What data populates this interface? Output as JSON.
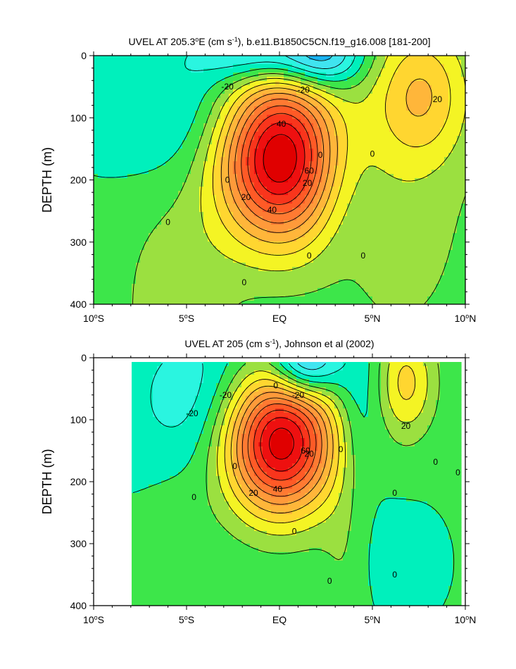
{
  "chart_data": [
    {
      "type": "contour",
      "title": "UVEL AT 205.3°E (cm s-1), b.e11.B1850C5CN.f19_g16.008 [181-200]",
      "title_parts": {
        "a": "UVEL AT 205.3",
        "deg": "o",
        "b": "E (cm s",
        "sup": "-1",
        "c": "), b.e11.B1850C5CN.f19_g16.008 [181-200]"
      },
      "ylabel": "DEPTH (m)",
      "x_range": [
        -10,
        10
      ],
      "y_range": [
        0,
        400
      ],
      "y_inverted": true,
      "x_ticks": [
        {
          "v": -10,
          "n": "10",
          "d": "S"
        },
        {
          "v": -5,
          "n": "5",
          "d": "S"
        },
        {
          "v": 0,
          "n": "EQ",
          "d": ""
        },
        {
          "v": 5,
          "n": "5",
          "d": "N"
        },
        {
          "v": 10,
          "n": "10",
          "d": "N"
        }
      ],
      "y_ticks": [
        0,
        100,
        200,
        300,
        400
      ],
      "contour_interval": 10,
      "field": [
        {
          "lat": 0,
          "depth": 158,
          "rlat": 3.3,
          "rdepth": 135,
          "amp": 115
        },
        {
          "lat": 7.6,
          "depth": 60,
          "rlat": 2.6,
          "rdepth": 110,
          "amp": 33
        },
        {
          "lat": 6.5,
          "depth": 240,
          "rlat": 4.5,
          "rdepth": 280,
          "amp": 12
        },
        {
          "lat": -5.5,
          "depth": 400,
          "rlat": 3.2,
          "rdepth": 200,
          "amp": 14
        },
        {
          "lat": -1,
          "depth": 0,
          "rlat": 3,
          "rdepth": 45,
          "amp": -32
        },
        {
          "lat": 2.3,
          "depth": 0,
          "rlat": 2.2,
          "rdepth": 55,
          "amp": -42
        },
        {
          "lat": -3.5,
          "depth": 90,
          "rlat": 6,
          "rdepth": 120,
          "amp": -18
        },
        {
          "lat": 3.2,
          "depth": 200,
          "rlat": 2,
          "rdepth": 120,
          "amp": -14
        }
      ],
      "base": 2,
      "contour_labels": [
        {
          "lat": -2.8,
          "depth": 50,
          "text": "-20"
        },
        {
          "lat": 1.3,
          "depth": 55,
          "text": "-20"
        },
        {
          "lat": 0.1,
          "depth": 110,
          "text": "40"
        },
        {
          "lat": 1.6,
          "depth": 185,
          "text": "60"
        },
        {
          "lat": 1.5,
          "depth": 205,
          "text": "20"
        },
        {
          "lat": -1.8,
          "depth": 228,
          "text": "20"
        },
        {
          "lat": -0.4,
          "depth": 248,
          "text": "40"
        },
        {
          "lat": 2.2,
          "depth": 160,
          "text": "0"
        },
        {
          "lat": 8.5,
          "depth": 70,
          "text": "20"
        },
        {
          "lat": 5,
          "depth": 158,
          "text": "0"
        },
        {
          "lat": -6,
          "depth": 268,
          "text": "0"
        },
        {
          "lat": -2.8,
          "depth": 200,
          "text": "0"
        },
        {
          "lat": 1.6,
          "depth": 322,
          "text": "0"
        },
        {
          "lat": 4.5,
          "depth": 322,
          "text": "0"
        },
        {
          "lat": -1.9,
          "depth": 365,
          "text": "0"
        }
      ]
    },
    {
      "type": "contour",
      "title": "UVEL AT 205 (cm s-1), Johnson et al (2002)",
      "title_parts": {
        "a": "UVEL AT 205 (cm s",
        "sup": "-1",
        "c": "), Johnson et al (2002)"
      },
      "ylabel": "DEPTH (m)",
      "x_range": [
        -10,
        10
      ],
      "y_range": [
        0,
        400
      ],
      "y_inverted": true,
      "x_ticks": [
        {
          "v": -10,
          "n": "10",
          "d": "S"
        },
        {
          "v": -5,
          "n": "5",
          "d": "S"
        },
        {
          "v": 0,
          "n": "EQ",
          "d": ""
        },
        {
          "v": 5,
          "n": "5",
          "d": "N"
        },
        {
          "v": 10,
          "n": "10",
          "d": "N"
        }
      ],
      "y_ticks": [
        0,
        100,
        200,
        300,
        400
      ],
      "contour_interval": 10,
      "data_extent": {
        "lat": [
          -8,
          9.8
        ],
        "depth": [
          5,
          400
        ]
      },
      "field": [
        {
          "lat": 0,
          "depth": 135,
          "rlat": 3,
          "rdepth": 115,
          "amp": 110
        },
        {
          "lat": 6.8,
          "depth": 40,
          "rlat": 1.6,
          "rdepth": 90,
          "amp": 32
        },
        {
          "lat": 1.4,
          "depth": 10,
          "rlat": 1.8,
          "rdepth": 55,
          "amp": -50
        },
        {
          "lat": -4,
          "depth": 70,
          "rlat": 4,
          "rdepth": 130,
          "amp": -20
        },
        {
          "lat": 4.3,
          "depth": 90,
          "rlat": 1.4,
          "rdepth": 130,
          "amp": -14
        },
        {
          "lat": 3.5,
          "depth": 330,
          "rlat": 1.3,
          "rdepth": 120,
          "amp": 8
        },
        {
          "lat": -5.5,
          "depth": 300,
          "rlat": 2,
          "rdepth": 150,
          "amp": 6
        },
        {
          "lat": 6.5,
          "depth": 330,
          "rlat": 2,
          "rdepth": 80,
          "amp": -8
        }
      ],
      "base": 1,
      "contour_labels": [
        {
          "lat": -4.7,
          "depth": 90,
          "text": "-20"
        },
        {
          "lat": -2.9,
          "depth": 60,
          "text": "-20"
        },
        {
          "lat": 1,
          "depth": 60,
          "text": "-20"
        },
        {
          "lat": -0.2,
          "depth": 45,
          "text": "0"
        },
        {
          "lat": 1.6,
          "depth": 155,
          "text": "20"
        },
        {
          "lat": 1.4,
          "depth": 150,
          "text": "60"
        },
        {
          "lat": -1.4,
          "depth": 218,
          "text": "20"
        },
        {
          "lat": -0.1,
          "depth": 212,
          "text": "40"
        },
        {
          "lat": 6.8,
          "depth": 110,
          "text": "20"
        },
        {
          "lat": 3.3,
          "depth": 148,
          "text": "0"
        },
        {
          "lat": -2.4,
          "depth": 175,
          "text": "0"
        },
        {
          "lat": 8.4,
          "depth": 168,
          "text": "0"
        },
        {
          "lat": 9.6,
          "depth": 185,
          "text": "0"
        },
        {
          "lat": -4.6,
          "depth": 225,
          "text": "0"
        },
        {
          "lat": 6.2,
          "depth": 218,
          "text": "0"
        },
        {
          "lat": 0.8,
          "depth": 280,
          "text": "0"
        },
        {
          "lat": 2.7,
          "depth": 360,
          "text": "0"
        },
        {
          "lat": 6.2,
          "depth": 350,
          "text": "0"
        }
      ]
    }
  ],
  "palette": {
    "levels": [
      -60,
      -50,
      -40,
      -30,
      -20,
      -10,
      0,
      10,
      20,
      30,
      40,
      50,
      60,
      70,
      80,
      90,
      100
    ],
    "colors": [
      "#1a3ff0",
      "#2860f0",
      "#1f8ff0",
      "#19b3f2",
      "#40e4f0",
      "#2af5e0",
      "#00f0bc",
      "#3de64a",
      "#9be040",
      "#f4f424",
      "#ffd630",
      "#ffb63a",
      "#ff9a3a",
      "#ff7a32",
      "#ff5a26",
      "#f9351c",
      "#ee1010",
      "#e00000"
    ],
    "line": "#000000"
  }
}
